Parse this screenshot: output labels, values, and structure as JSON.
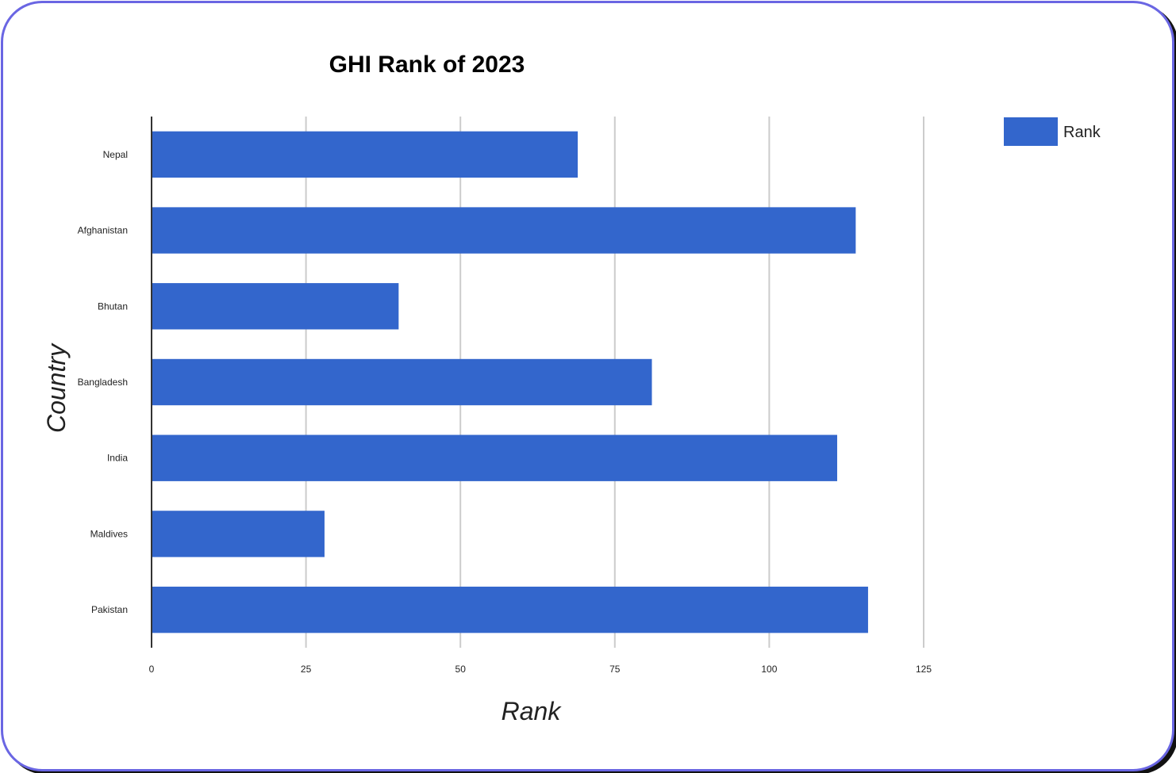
{
  "chart_data": {
    "type": "bar",
    "orientation": "horizontal",
    "title": "GHI Rank of 2023",
    "xlabel": "Rank",
    "ylabel": "Country",
    "categories": [
      "Nepal",
      "Afghanistan",
      "Bhutan",
      "Bangladesh",
      "India",
      "Maldives",
      "Pakistan"
    ],
    "series": [
      {
        "name": "Rank",
        "values": [
          69,
          114,
          40,
          81,
          111,
          28,
          116
        ],
        "color": "#3366cc"
      }
    ],
    "xlim": [
      0,
      125
    ],
    "xticks": [
      "0",
      "25",
      "50",
      "75",
      "100",
      "125"
    ],
    "grid": true,
    "legend_position": "top-right"
  }
}
